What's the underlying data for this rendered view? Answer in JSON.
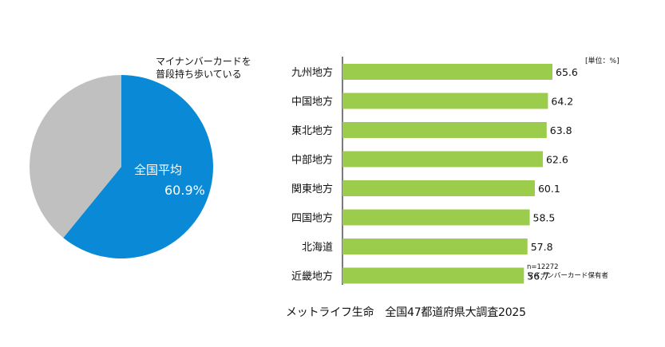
{
  "chart_data": [
    {
      "type": "pie",
      "title": "マイナンバーカードを普段持ち歩いている",
      "title_lines": [
        "マイナンバーカードを",
        "普段持ち歩いている"
      ],
      "slices": [
        {
          "name": "全国平均",
          "value": 60.9,
          "color": "#0a8ad6"
        },
        {
          "name": "",
          "value": 39.1,
          "color": "#c0c0c0"
        }
      ],
      "label": {
        "name": "全国平均",
        "value_text": "60.9%"
      }
    },
    {
      "type": "bar",
      "orientation": "horizontal",
      "categories": [
        "九州地方",
        "中国地方",
        "東北地方",
        "中部地方",
        "関東地方",
        "四国地方",
        "北海道",
        "近畿地方"
      ],
      "values": [
        65.6,
        64.2,
        63.8,
        62.6,
        60.1,
        58.5,
        57.8,
        56.7
      ],
      "value_labels": [
        "65.6",
        "64.2",
        "63.8",
        "62.6",
        "60.1",
        "58.5",
        "57.8",
        "56.7"
      ],
      "bar_color": "#9ccc4c",
      "unit_label": "[単位：%]",
      "note_lines": [
        "n=12272",
        "マイナンバーカード保有者"
      ],
      "xlim": [
        0,
        80
      ]
    }
  ],
  "source": {
    "company": "メットライフ生命",
    "survey": "全国47都道府県大調査2025"
  }
}
